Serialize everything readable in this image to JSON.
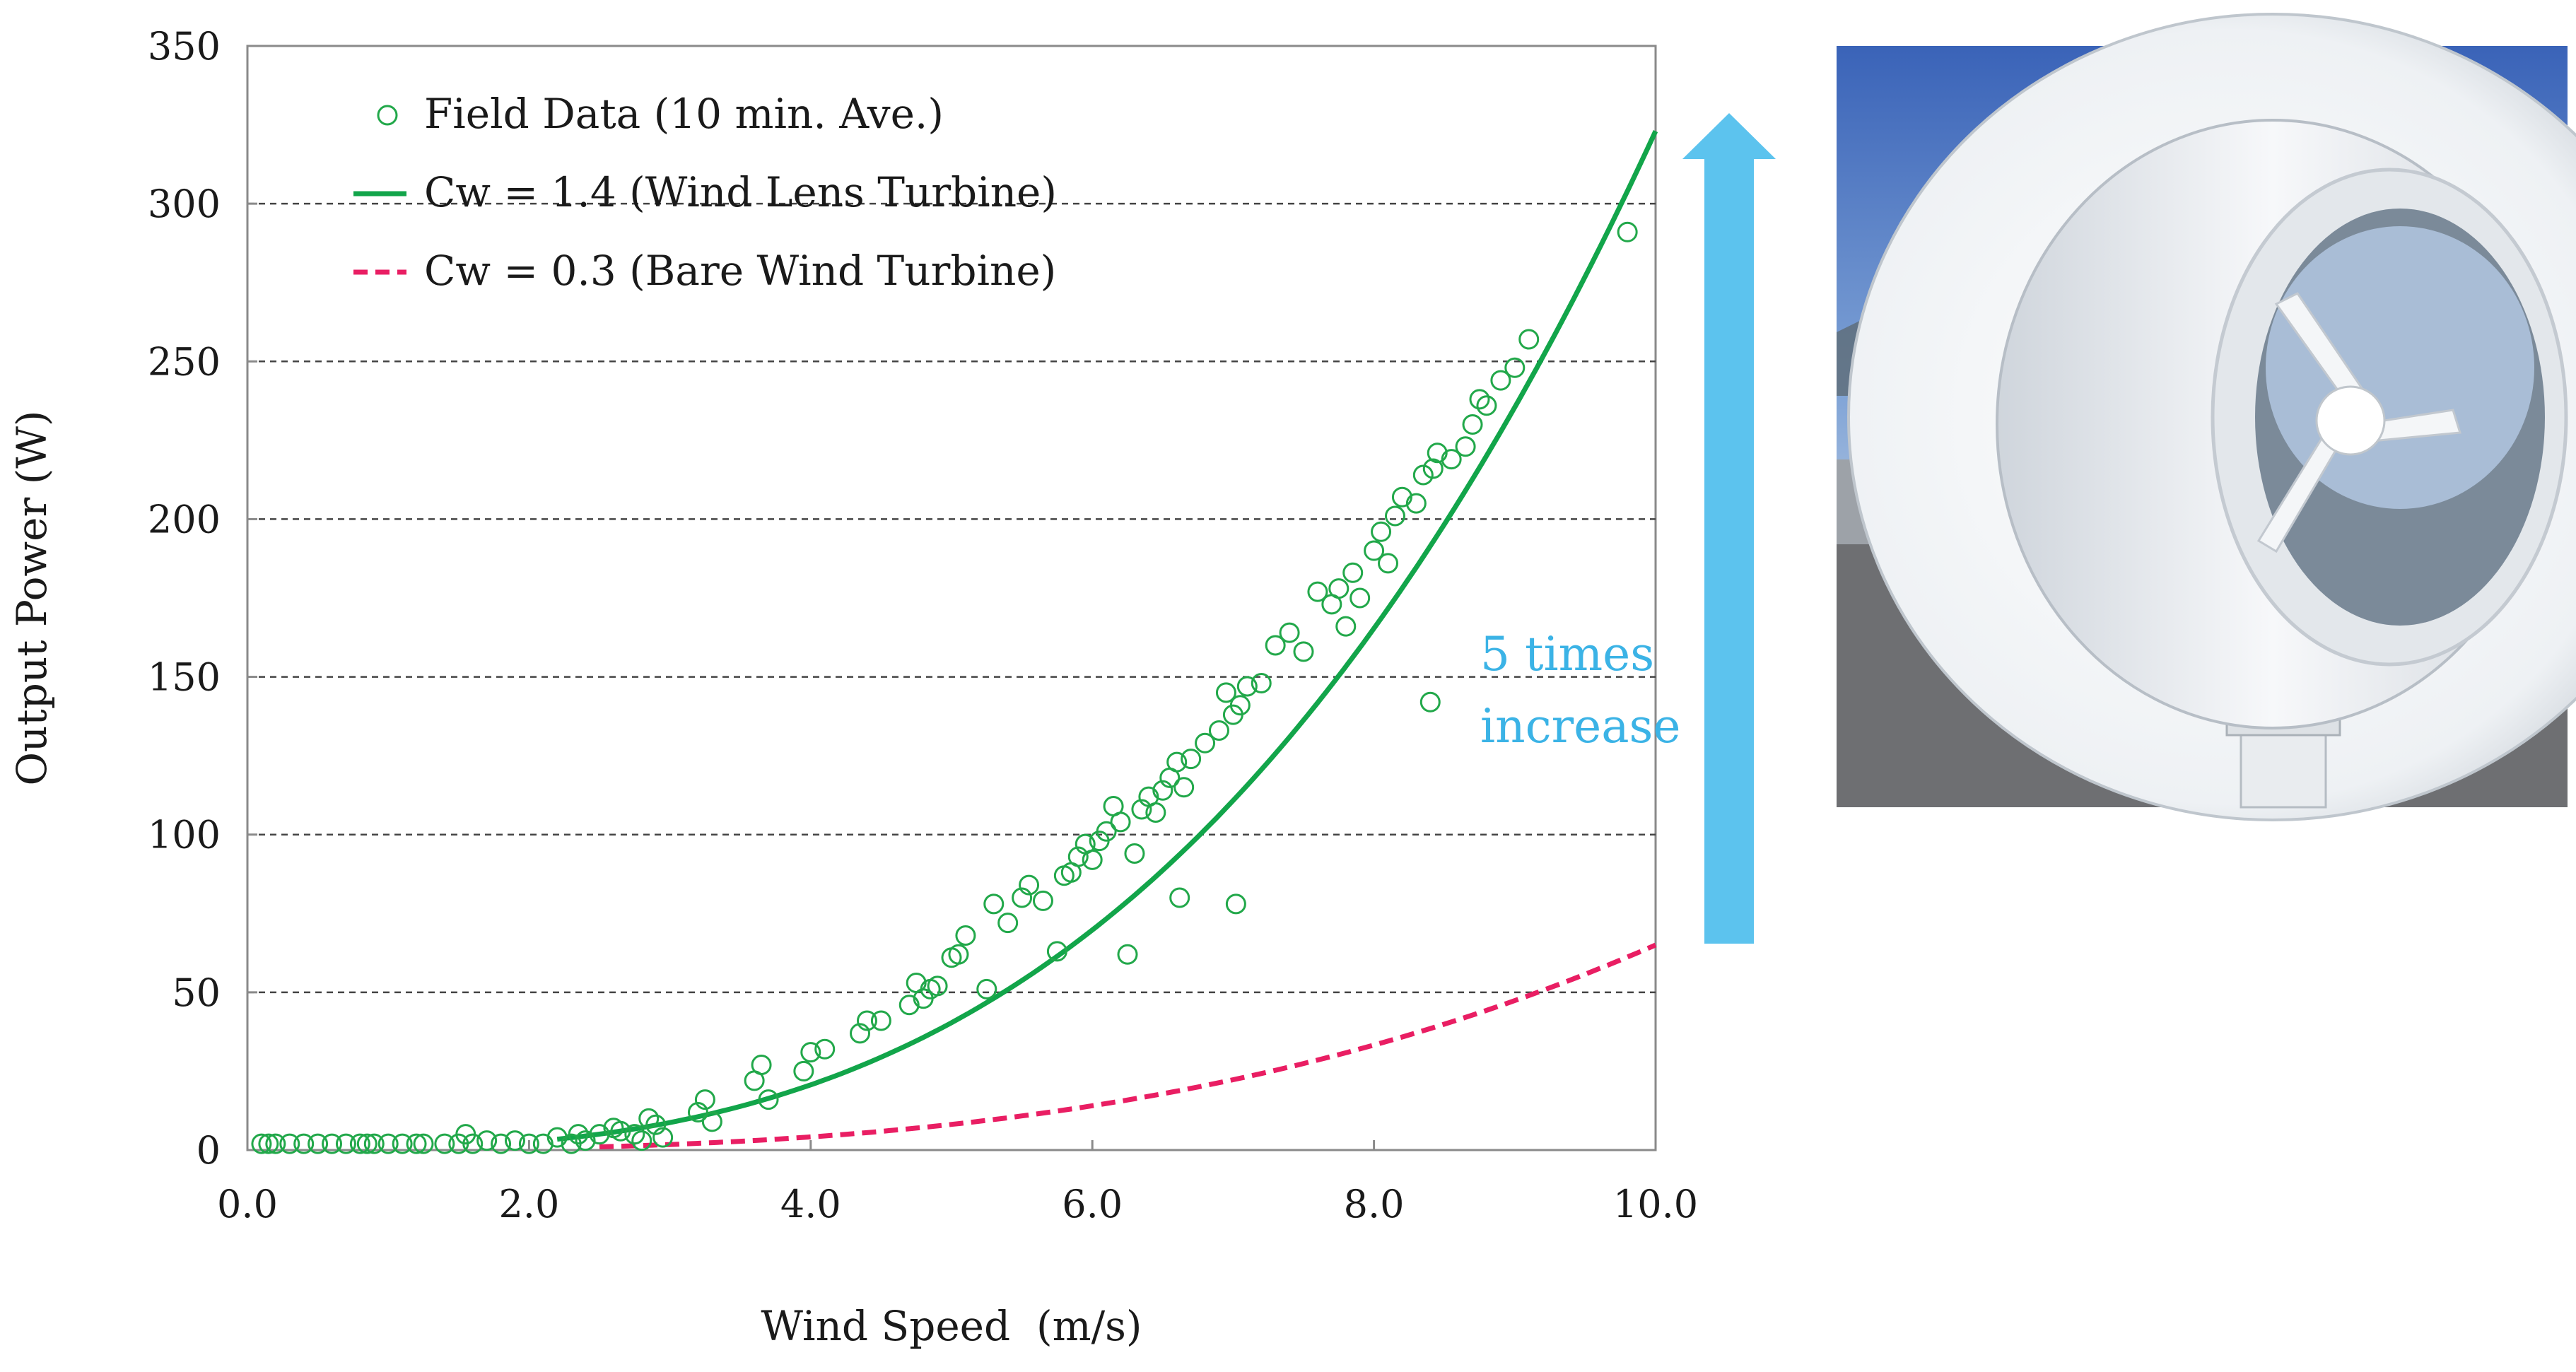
{
  "chart_data": {
    "type": "scatter",
    "title": "",
    "xlabel": "Wind Speed  (m/s)",
    "ylabel": "Output Power (W)",
    "xlim": [
      0,
      10
    ],
    "ylim": [
      0,
      350
    ],
    "x_ticks": [
      "0.0",
      "2.0",
      "4.0",
      "6.0",
      "8.0",
      "10.0"
    ],
    "y_ticks": [
      "0",
      "50",
      "100",
      "150",
      "200",
      "250",
      "300",
      "350"
    ],
    "grid": "horizontal dashed at 50, 100, 150, 200, 250, 300",
    "legend_position": "top-left",
    "series": [
      {
        "name": "Field Data (10 min. Ave.)",
        "kind": "scatter",
        "color": "#22a84a",
        "points": [
          [
            0.1,
            2
          ],
          [
            0.15,
            2
          ],
          [
            0.2,
            2
          ],
          [
            0.3,
            2
          ],
          [
            0.4,
            2
          ],
          [
            0.5,
            2
          ],
          [
            0.6,
            2
          ],
          [
            0.7,
            2
          ],
          [
            0.8,
            2
          ],
          [
            0.85,
            2
          ],
          [
            0.9,
            2
          ],
          [
            1.0,
            2
          ],
          [
            1.1,
            2
          ],
          [
            1.2,
            2
          ],
          [
            1.25,
            2
          ],
          [
            1.4,
            2
          ],
          [
            1.5,
            2
          ],
          [
            1.55,
            5
          ],
          [
            1.6,
            2
          ],
          [
            1.7,
            3
          ],
          [
            1.8,
            2
          ],
          [
            1.9,
            3
          ],
          [
            2.0,
            2
          ],
          [
            2.1,
            2
          ],
          [
            2.2,
            4
          ],
          [
            2.3,
            2
          ],
          [
            2.35,
            5
          ],
          [
            2.4,
            3
          ],
          [
            2.5,
            5
          ],
          [
            2.6,
            7
          ],
          [
            2.65,
            6
          ],
          [
            2.75,
            5
          ],
          [
            2.8,
            3
          ],
          [
            2.85,
            10
          ],
          [
            2.9,
            8
          ],
          [
            2.95,
            4
          ],
          [
            3.2,
            12
          ],
          [
            3.25,
            16
          ],
          [
            3.3,
            9
          ],
          [
            3.6,
            22
          ],
          [
            3.65,
            27
          ],
          [
            3.7,
            16
          ],
          [
            3.95,
            25
          ],
          [
            4.0,
            31
          ],
          [
            4.1,
            32
          ],
          [
            4.35,
            37
          ],
          [
            4.4,
            41
          ],
          [
            4.5,
            41
          ],
          [
            4.7,
            46
          ],
          [
            4.75,
            53
          ],
          [
            4.8,
            48
          ],
          [
            4.85,
            51
          ],
          [
            4.9,
            52
          ],
          [
            5.0,
            61
          ],
          [
            5.05,
            62
          ],
          [
            5.1,
            68
          ],
          [
            5.25,
            51
          ],
          [
            5.3,
            78
          ],
          [
            5.4,
            72
          ],
          [
            5.5,
            80
          ],
          [
            5.55,
            84
          ],
          [
            5.65,
            79
          ],
          [
            5.75,
            63
          ],
          [
            5.8,
            87
          ],
          [
            5.85,
            88
          ],
          [
            5.9,
            93
          ],
          [
            5.95,
            97
          ],
          [
            6.0,
            92
          ],
          [
            6.05,
            98
          ],
          [
            6.1,
            101
          ],
          [
            6.15,
            109
          ],
          [
            6.2,
            104
          ],
          [
            6.25,
            62
          ],
          [
            6.3,
            94
          ],
          [
            6.35,
            108
          ],
          [
            6.4,
            112
          ],
          [
            6.45,
            107
          ],
          [
            6.5,
            114
          ],
          [
            6.55,
            118
          ],
          [
            6.6,
            123
          ],
          [
            6.62,
            80
          ],
          [
            6.65,
            115
          ],
          [
            6.7,
            124
          ],
          [
            6.8,
            129
          ],
          [
            6.9,
            133
          ],
          [
            6.95,
            145
          ],
          [
            7.0,
            138
          ],
          [
            7.02,
            78
          ],
          [
            7.05,
            141
          ],
          [
            7.1,
            147
          ],
          [
            7.2,
            148
          ],
          [
            7.3,
            160
          ],
          [
            7.4,
            164
          ],
          [
            7.5,
            158
          ],
          [
            7.6,
            177
          ],
          [
            7.7,
            173
          ],
          [
            7.75,
            178
          ],
          [
            7.8,
            166
          ],
          [
            7.85,
            183
          ],
          [
            7.9,
            175
          ],
          [
            8.0,
            190
          ],
          [
            8.05,
            196
          ],
          [
            8.1,
            186
          ],
          [
            8.15,
            201
          ],
          [
            8.2,
            207
          ],
          [
            8.3,
            205
          ],
          [
            8.35,
            214
          ],
          [
            8.4,
            142
          ],
          [
            8.42,
            216
          ],
          [
            8.45,
            221
          ],
          [
            8.55,
            219
          ],
          [
            8.65,
            223
          ],
          [
            8.7,
            230
          ],
          [
            8.75,
            238
          ],
          [
            8.8,
            236
          ],
          [
            8.9,
            244
          ],
          [
            9.0,
            248
          ],
          [
            9.1,
            257
          ],
          [
            9.8,
            291
          ]
        ]
      },
      {
        "name": "Cw = 1.4 (Wind Lens Turbine)",
        "kind": "line",
        "color": "#12a54a",
        "dash": "solid",
        "x": [
          2.2,
          10.0
        ],
        "formula": "0.3234 * v^3, plotted for v >= 2.2",
        "y_at_10": 323
      },
      {
        "name": "Cw = 0.3 (Bare Wind Turbine)",
        "kind": "line",
        "color": "#e91e63",
        "dash": "dashed",
        "x": [
          2.5,
          10.0
        ],
        "formula": "0.0647 * v^3, plotted for v >= 2.5",
        "y_at_10": 65
      }
    ],
    "annotations": [
      {
        "text_lines": [
          "5 times",
          "increase"
        ],
        "color": "#3bb3e6"
      }
    ],
    "arrow_color": "#5cc3ee"
  },
  "photo": {
    "description_icon": "wind-lens-turbine-photo"
  }
}
